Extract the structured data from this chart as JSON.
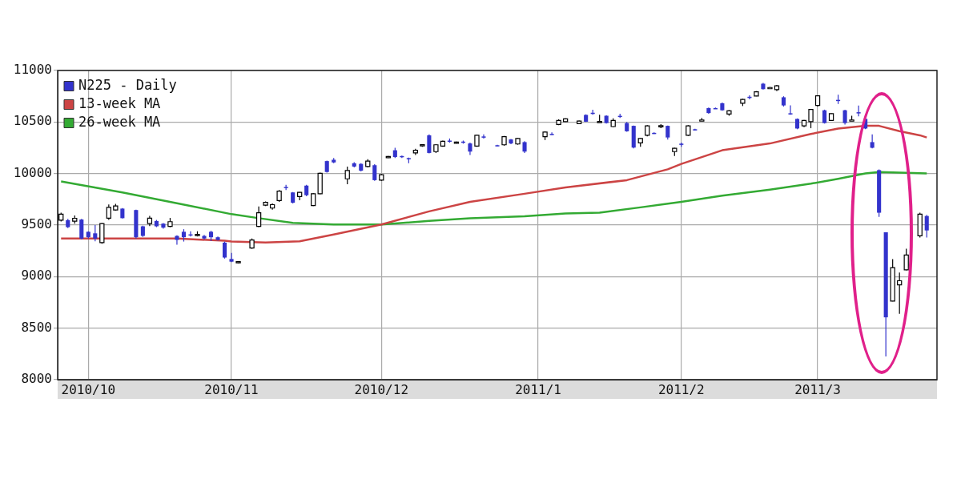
{
  "chart_data": {
    "type": "candlestick",
    "categories": [
      null,
      null,
      null,
      null,
      "2010/10",
      null,
      null,
      null,
      null,
      null,
      null,
      null,
      null,
      null,
      null,
      null,
      null,
      null,
      null,
      null,
      null,
      null,
      null,
      null,
      null,
      "2010/11",
      null,
      null,
      null,
      null,
      null,
      null,
      null,
      null,
      null,
      null,
      null,
      null,
      null,
      null,
      null,
      null,
      null,
      null,
      null,
      null,
      null,
      "2010/12",
      null,
      null,
      null,
      null,
      null,
      null,
      null,
      null,
      null,
      null,
      null,
      null,
      null,
      null,
      null,
      null,
      null,
      null,
      null,
      null,
      null,
      null,
      "2011/1",
      null,
      null,
      null,
      null,
      null,
      null,
      null,
      null,
      null,
      null,
      null,
      null,
      null,
      null,
      null,
      null,
      null,
      null,
      null,
      null,
      "2011/2",
      null,
      null,
      null,
      null,
      null,
      null,
      null,
      null,
      null,
      null,
      null,
      null,
      null,
      null,
      null,
      null,
      null,
      null,
      null,
      "2011/3",
      null,
      null,
      null,
      null,
      null,
      null,
      null,
      null,
      null,
      null,
      null,
      null,
      null,
      null,
      null,
      null,
      null
    ],
    "series": [
      {
        "name": "N225 - Daily",
        "color": "#3333cc",
        "colors": [
          "#ffffff",
          "#3333cc",
          "#ffffff",
          "#3333cc",
          "#3333cc",
          "#3333cc",
          "#ffffff",
          "#ffffff",
          "#ffffff",
          "#3333cc",
          null,
          "#3333cc",
          "#3333cc",
          "#ffffff",
          "#3333cc",
          "#3333cc",
          "#ffffff",
          "#3333cc",
          "#3333cc",
          "#3333cc",
          "#ffffff",
          "#3333cc",
          "#3333cc",
          "#3333cc",
          "#3333cc",
          "#3333cc",
          "#ffffff",
          null,
          "#ffffff",
          "#ffffff",
          "#ffffff",
          "#ffffff",
          "#ffffff",
          "#3333cc",
          "#3333cc",
          "#ffffff",
          "#3333cc",
          "#ffffff",
          "#ffffff",
          "#3333cc",
          "#3333cc",
          null,
          "#ffffff",
          "#3333cc",
          "#3333cc",
          "#ffffff",
          "#3333cc",
          "#ffffff",
          "#ffffff",
          "#3333cc",
          "#3333cc",
          "#3333cc",
          "#ffffff",
          "#ffffff",
          "#3333cc",
          "#ffffff",
          "#ffffff",
          "#3333cc",
          "#ffffff",
          "#3333cc",
          "#3333cc",
          "#ffffff",
          "#3333cc",
          null,
          "#3333cc",
          "#ffffff",
          "#3333cc",
          "#ffffff",
          "#3333cc",
          null,
          null,
          "#ffffff",
          "#3333cc",
          "#ffffff",
          "#ffffff",
          null,
          "#ffffff",
          "#3333cc",
          "#3333cc",
          "#ffffff",
          "#3333cc",
          "#ffffff",
          "#3333cc",
          "#3333cc",
          "#3333cc",
          "#ffffff",
          "#ffffff",
          "#3333cc",
          "#ffffff",
          "#3333cc",
          "#ffffff",
          "#3333cc",
          "#ffffff",
          "#3333cc",
          "#ffffff",
          "#3333cc",
          "#3333cc",
          "#3333cc",
          "#ffffff",
          null,
          "#ffffff",
          "#3333cc",
          "#ffffff",
          "#3333cc",
          "#ffffff",
          "#ffffff",
          "#3333cc",
          "#3333cc",
          "#3333cc",
          "#ffffff",
          "#ffffff",
          "#ffffff",
          "#3333cc",
          "#ffffff",
          "#3333cc",
          "#3333cc",
          "#ffffff",
          "#3333cc",
          "#3333cc",
          "#3333cc",
          "#3333cc",
          "#3333cc",
          "#ffffff",
          "#ffffff",
          "#ffffff",
          null,
          "#ffffff",
          "#3333cc",
          null
        ],
        "ohlc": [
          [
            9548,
            9620,
            9535,
            9606
          ],
          [
            9548,
            9560,
            9470,
            9480
          ],
          [
            9538,
            9593,
            9514,
            9566
          ],
          [
            9554,
            9560,
            9360,
            9369
          ],
          [
            9435,
            9440,
            9370,
            9382
          ],
          [
            9420,
            9500,
            9343,
            9369
          ],
          [
            9330,
            9520,
            9320,
            9514
          ],
          [
            9567,
            9700,
            9550,
            9672
          ],
          [
            9646,
            9705,
            9640,
            9685
          ],
          [
            9660,
            9665,
            9565,
            9567
          ],
          null,
          [
            9646,
            9650,
            9370,
            9382
          ],
          [
            9488,
            9495,
            9385,
            9395
          ],
          [
            9514,
            9590,
            9490,
            9567
          ],
          [
            9540,
            9550,
            9480,
            9488
          ],
          [
            9514,
            9520,
            9465,
            9475
          ],
          [
            9488,
            9570,
            9480,
            9533
          ],
          [
            9395,
            9400,
            9310,
            9356
          ],
          [
            9435,
            9460,
            9340,
            9382
          ],
          [
            9410,
            9440,
            9390,
            9400
          ],
          [
            9400,
            9440,
            9390,
            9410
          ],
          [
            9395,
            9405,
            9360,
            9370
          ],
          [
            9435,
            9445,
            9345,
            9382
          ],
          [
            9382,
            9390,
            9350,
            9356
          ],
          [
            9330,
            9340,
            9175,
            9185
          ],
          [
            9171,
            9230,
            9140,
            9145
          ],
          [
            9140,
            9150,
            9130,
            9145
          ],
          null,
          [
            9277,
            9370,
            9270,
            9356
          ],
          [
            9488,
            9680,
            9480,
            9620
          ],
          [
            9693,
            9730,
            9685,
            9720
          ],
          [
            9665,
            9710,
            9650,
            9698
          ],
          [
            9738,
            9840,
            9725,
            9830
          ],
          [
            9870,
            9890,
            9840,
            9860
          ],
          [
            9817,
            9820,
            9710,
            9717
          ],
          [
            9777,
            9820,
            9740,
            9817
          ],
          [
            9883,
            9890,
            9780,
            9790
          ],
          [
            9690,
            9810,
            9685,
            9804
          ],
          [
            9804,
            10010,
            9800,
            10002
          ],
          [
            10121,
            10125,
            10010,
            10015
          ],
          [
            10134,
            10150,
            10100,
            10108
          ],
          null,
          [
            9949,
            10068,
            9897,
            10029
          ],
          [
            10100,
            10110,
            10060,
            10068
          ],
          [
            10094,
            10100,
            10020,
            10028
          ],
          [
            10068,
            10140,
            10060,
            10121
          ],
          [
            10081,
            10090,
            9930,
            9936
          ],
          [
            9936,
            9995,
            9930,
            9989
          ],
          [
            10160,
            10170,
            10150,
            10165
          ],
          [
            10226,
            10250,
            10150,
            10160
          ],
          [
            10170,
            10175,
            10150,
            10160
          ],
          [
            10150,
            10155,
            10100,
            10140
          ],
          [
            10200,
            10240,
            10180,
            10226
          ],
          [
            10270,
            10285,
            10260,
            10280
          ],
          [
            10371,
            10380,
            10195,
            10200
          ],
          [
            10213,
            10285,
            10200,
            10279
          ],
          [
            10266,
            10320,
            10260,
            10313
          ],
          [
            10320,
            10340,
            10300,
            10310
          ],
          [
            10300,
            10310,
            10290,
            10305
          ],
          [
            10310,
            10320,
            10290,
            10300
          ],
          [
            10292,
            10300,
            10180,
            10213
          ],
          [
            10266,
            10375,
            10260,
            10371
          ],
          [
            10360,
            10380,
            10340,
            10350
          ],
          null,
          [
            10275,
            10280,
            10265,
            10270
          ],
          [
            10279,
            10365,
            10270,
            10358
          ],
          [
            10331,
            10335,
            10285,
            10292
          ],
          [
            10287,
            10345,
            10280,
            10340
          ],
          [
            10305,
            10315,
            10200,
            10213
          ],
          null,
          null,
          [
            10358,
            10410,
            10325,
            10403
          ],
          [
            10385,
            10400,
            10375,
            10380
          ],
          [
            10477,
            10525,
            10470,
            10516
          ],
          [
            10503,
            10535,
            10500,
            10530
          ],
          null,
          [
            10484,
            10515,
            10480,
            10510
          ],
          [
            10569,
            10575,
            10500,
            10503
          ],
          [
            10590,
            10620,
            10570,
            10585
          ],
          [
            10500,
            10570,
            10500,
            10505
          ],
          [
            10561,
            10565,
            10485,
            10490
          ],
          [
            10456,
            10535,
            10450,
            10516
          ],
          [
            10560,
            10580,
            10540,
            10555
          ],
          [
            10490,
            10500,
            10405,
            10410
          ],
          [
            10463,
            10465,
            10245,
            10252
          ],
          [
            10297,
            10345,
            10260,
            10340
          ],
          [
            10371,
            10470,
            10360,
            10463
          ],
          [
            10395,
            10400,
            10385,
            10390
          ],
          [
            10460,
            10480,
            10440,
            10465
          ],
          [
            10463,
            10465,
            10330,
            10350
          ],
          [
            10213,
            10250,
            10170,
            10245
          ],
          [
            10290,
            10300,
            10260,
            10280
          ],
          [
            10371,
            10470,
            10365,
            10463
          ],
          [
            10430,
            10435,
            10420,
            10425
          ],
          [
            10515,
            10540,
            10515,
            10520
          ],
          [
            10635,
            10640,
            10580,
            10587
          ],
          [
            10635,
            10640,
            10630,
            10630
          ],
          [
            10682,
            10690,
            10610,
            10614
          ],
          [
            10577,
            10615,
            10560,
            10608
          ],
          null,
          [
            10682,
            10725,
            10655,
            10719
          ],
          [
            10745,
            10760,
            10720,
            10740
          ],
          [
            10753,
            10800,
            10750,
            10793
          ],
          [
            10872,
            10880,
            10815,
            10819
          ],
          [
            10830,
            10840,
            10825,
            10835
          ],
          [
            10814,
            10860,
            10800,
            10851
          ],
          [
            10740,
            10750,
            10650,
            10661
          ],
          [
            10585,
            10661,
            10570,
            10580
          ],
          [
            10530,
            10535,
            10430,
            10437
          ],
          [
            10463,
            10520,
            10450,
            10516
          ],
          [
            10503,
            10625,
            10440,
            10622
          ],
          [
            10661,
            10755,
            10650,
            10754
          ],
          [
            10614,
            10620,
            10485,
            10490
          ],
          [
            10516,
            10585,
            10510,
            10582
          ],
          [
            10715,
            10765,
            10675,
            10705
          ],
          [
            10614,
            10620,
            10475,
            10490
          ],
          [
            10515,
            10560,
            10510,
            10520
          ],
          [
            10595,
            10660,
            10555,
            10590
          ],
          [
            10530,
            10540,
            10430,
            10437
          ],
          [
            10305,
            10380,
            10245,
            10250
          ],
          [
            10033,
            10040,
            9580,
            9620
          ],
          [
            9430,
            9430,
            8225,
            8605
          ],
          [
            8762,
            9170,
            8760,
            9087
          ],
          [
            8920,
            9040,
            8640,
            8960
          ],
          [
            9066,
            9270,
            9060,
            9210
          ],
          null,
          [
            9396,
            9620,
            9380,
            9606
          ],
          [
            9588,
            9600,
            9380,
            9448
          ],
          null
        ]
      },
      {
        "name": "13-week MA",
        "type": "line",
        "color": "#cc4444",
        "values": [
          9369,
          null,
          null,
          null,
          null,
          null,
          null,
          null,
          null,
          9369,
          null,
          null,
          null,
          null,
          null,
          null,
          null,
          9369,
          null,
          null,
          null,
          null,
          null,
          null,
          9348,
          9340,
          null,
          null,
          null,
          null,
          9330,
          null,
          null,
          null,
          null,
          9343,
          null,
          null,
          null,
          null,
          9409,
          null,
          null,
          null,
          null,
          null,
          null,
          9506,
          null,
          null,
          null,
          null,
          null,
          null,
          9633,
          null,
          null,
          null,
          null,
          null,
          9725,
          null,
          null,
          null,
          null,
          null,
          null,
          null,
          9804,
          null,
          null,
          null,
          null,
          null,
          9865,
          null,
          null,
          null,
          null,
          null,
          null,
          null,
          null,
          9936,
          null,
          null,
          null,
          null,
          null,
          10041,
          null,
          10094,
          null,
          null,
          null,
          null,
          null,
          10226,
          null,
          null,
          null,
          null,
          null,
          null,
          10292,
          null,
          null,
          null,
          null,
          null,
          10384,
          null,
          null,
          null,
          10437,
          null,
          null,
          null,
          10463,
          null,
          10463,
          null,
          null,
          10411,
          null,
          null,
          10371,
          10350,
          null
        ]
      },
      {
        "name": "26-week MA",
        "type": "line",
        "color": "#33aa33",
        "values": [
          9923,
          null,
          null,
          null,
          null,
          null,
          null,
          null,
          null,
          9817,
          null,
          null,
          null,
          null,
          null,
          null,
          null,
          9712,
          null,
          null,
          null,
          null,
          null,
          null,
          null,
          9606,
          null,
          null,
          null,
          9567,
          null,
          null,
          null,
          null,
          9522,
          null,
          null,
          null,
          null,
          null,
          9506,
          null,
          null,
          null,
          null,
          null,
          null,
          9506,
          null,
          null,
          null,
          null,
          null,
          null,
          9540,
          null,
          null,
          null,
          null,
          null,
          9567,
          null,
          null,
          null,
          null,
          null,
          null,
          null,
          9585,
          null,
          null,
          null,
          null,
          null,
          9612,
          null,
          null,
          null,
          null,
          9620,
          null,
          null,
          null,
          null,
          null,
          9672,
          null,
          null,
          null,
          null,
          null,
          9725,
          null,
          null,
          null,
          null,
          null,
          9786,
          null,
          null,
          null,
          null,
          null,
          null,
          9844,
          null,
          null,
          null,
          null,
          null,
          9902,
          null,
          null,
          null,
          9949,
          null,
          null,
          null,
          10002,
          null,
          10015,
          null,
          null,
          null,
          null,
          null,
          null,
          10002,
          null
        ]
      }
    ],
    "ylim": [
      8000,
      11000
    ],
    "yticks": [
      8000,
      8500,
      9000,
      9500,
      10000,
      10500,
      11000
    ],
    "grid": true,
    "legend": "top left"
  }
}
